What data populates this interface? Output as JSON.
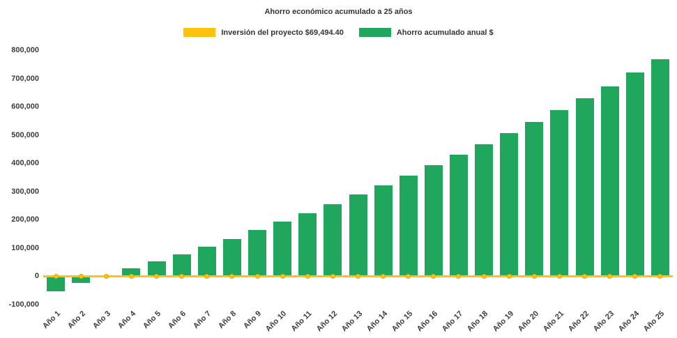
{
  "page": {
    "background": "#ffffff"
  },
  "chart_data": {
    "type": "bar",
    "title": "Ahorro económico acumulado a 25 años",
    "xlabel": "",
    "ylabel": "",
    "grid": false,
    "legend_position": "top",
    "ylim": [
      -100000,
      800000
    ],
    "y_ticks": [
      {
        "value": 800000,
        "label": "800,000"
      },
      {
        "value": 700000,
        "label": "700,000"
      },
      {
        "value": 600000,
        "label": "600,000"
      },
      {
        "value": 500000,
        "label": "500,000"
      },
      {
        "value": 400000,
        "label": "400,000"
      },
      {
        "value": 300000,
        "label": "300,000"
      },
      {
        "value": 200000,
        "label": "200,000"
      },
      {
        "value": 100000,
        "label": "100,000"
      },
      {
        "value": 0,
        "label": "0"
      },
      {
        "value": -100000,
        "label": "-100,000"
      }
    ],
    "categories": [
      "Año 1",
      "Año 2",
      "Año 3",
      "Año 4",
      "Año 5",
      "Año 6",
      "Año 7",
      "Año 8",
      "Año 9",
      "Año 10",
      "Año 11",
      "Año 12",
      "Año 13",
      "Año 14",
      "Año 15",
      "Año 16",
      "Año 17",
      "Año 18",
      "Año 19",
      "Año 20",
      "Año 21",
      "Año 22",
      "Año 23",
      "Año 24",
      "Año 25"
    ],
    "series": [
      {
        "name": "Inversión del proyecto $69,494.40",
        "type": "line",
        "color": "#FFC20E",
        "marker_border": "#E3A900",
        "investment_amount_label": "$69,494.40",
        "values": [
          0,
          0,
          0,
          0,
          0,
          0,
          0,
          0,
          0,
          0,
          0,
          0,
          0,
          0,
          0,
          0,
          0,
          0,
          0,
          0,
          0,
          0,
          0,
          0,
          0
        ]
      },
      {
        "name": "Ahorro acumulado anual $",
        "type": "bar",
        "color": "#21A65D",
        "values": [
          -52000,
          -24000,
          4000,
          28000,
          52000,
          78000,
          105000,
          133000,
          163000,
          193000,
          224000,
          256000,
          289000,
          322000,
          357000,
          393000,
          430000,
          467000,
          506000,
          546000,
          587000,
          630000,
          673000,
          720000,
          767000
        ]
      }
    ]
  }
}
